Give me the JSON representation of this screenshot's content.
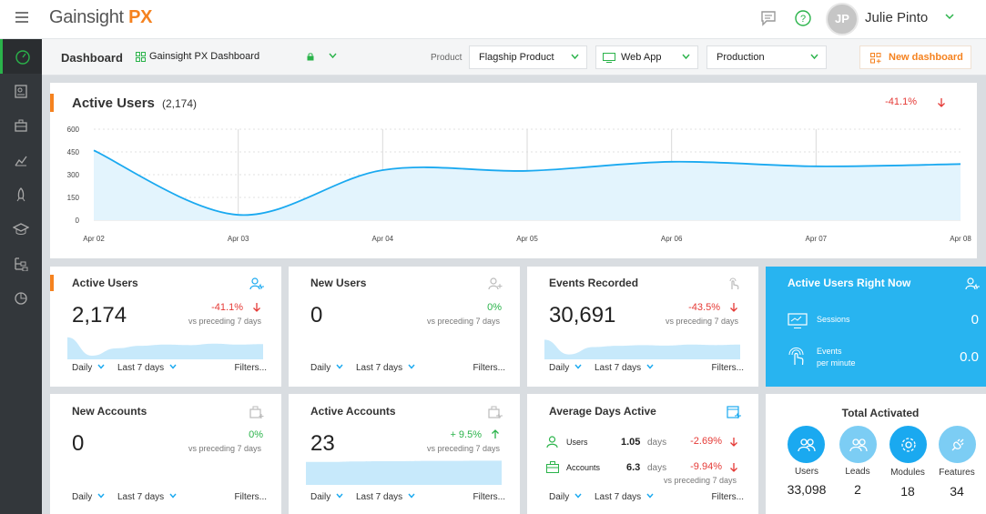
{
  "header": {
    "logo_main": "Gainsight",
    "logo_accent": "PX",
    "user_initials": "JP",
    "user_name": "Julie Pinto"
  },
  "toolbar": {
    "title": "Dashboard",
    "dashboard_select": "Gainsight PX Dashboard",
    "product_label": "Product",
    "product_select": "Flagship Product",
    "app_select": "Web App",
    "env_select": "Production",
    "new_dashboard": "New dashboard"
  },
  "active_users_chart": {
    "title": "Active Users",
    "total": "(2,174)",
    "change": "-41.1%",
    "chart_data": {
      "type": "area",
      "x": [
        "Apr 02",
        "Apr 03",
        "Apr 04",
        "Apr 05",
        "Apr 06",
        "Apr 07",
        "Apr 08"
      ],
      "values": [
        460,
        35,
        330,
        325,
        385,
        355,
        370
      ],
      "yticks": [
        0,
        150,
        300,
        450,
        600
      ],
      "ylim": [
        0,
        600
      ],
      "grid": true,
      "color": "#1aa9f0"
    }
  },
  "cards": {
    "active_users": {
      "title": "Active Users",
      "value": "2,174",
      "change": "-41.1%",
      "vs": "vs preceding 7 days",
      "period": "Daily",
      "range": "Last 7 days",
      "filters": "Filters..."
    },
    "new_users": {
      "title": "New Users",
      "value": "0",
      "change": "0%",
      "vs": "vs preceding 7 days",
      "period": "Daily",
      "range": "Last 7 days",
      "filters": "Filters..."
    },
    "events": {
      "title": "Events Recorded",
      "value": "30,691",
      "change": "-43.5%",
      "vs": "vs preceding 7 days",
      "period": "Daily",
      "range": "Last 7 days",
      "filters": "Filters..."
    },
    "live": {
      "title": "Active Users Right Now",
      "sessions_label": "Sessions",
      "sessions_value": "0",
      "events_label_1": "Events",
      "events_label_2": "per minute",
      "events_value": "0.0"
    },
    "new_accounts": {
      "title": "New Accounts",
      "value": "0",
      "change": "0%",
      "vs": "vs preceding 7 days",
      "period": "Daily",
      "range": "Last 7 days",
      "filters": "Filters..."
    },
    "active_accounts": {
      "title": "Active Accounts",
      "value": "23",
      "change": "+ 9.5%",
      "vs": "vs preceding 7 days",
      "period": "Daily",
      "range": "Last 7 days",
      "filters": "Filters..."
    },
    "avg_days": {
      "title": "Average Days Active",
      "users_label": "Users",
      "users_value": "1.05",
      "users_unit": "days",
      "users_change": "-2.69%",
      "accounts_label": "Accounts",
      "accounts_value": "6.3",
      "accounts_unit": "days",
      "accounts_change": "-9.94%",
      "vs": "vs preceding 7 days",
      "period": "Daily",
      "range": "Last 7 days",
      "filters": "Filters..."
    },
    "total_activated": {
      "title": "Total Activated",
      "items": [
        {
          "label": "Users",
          "value": "33,098",
          "color": "#1aa9f0"
        },
        {
          "label": "Leads",
          "value": "2",
          "color": "#7ccdf4"
        },
        {
          "label": "Modules",
          "value": "18",
          "color": "#1aa9f0"
        },
        {
          "label": "Features",
          "value": "34",
          "color": "#7ccdf4"
        }
      ]
    }
  },
  "colors": {
    "accent": "#f5821f",
    "blue": "#1aa9f0",
    "positive": "#2ab34a",
    "negative": "#e53935",
    "sidebar": "#33373b"
  }
}
